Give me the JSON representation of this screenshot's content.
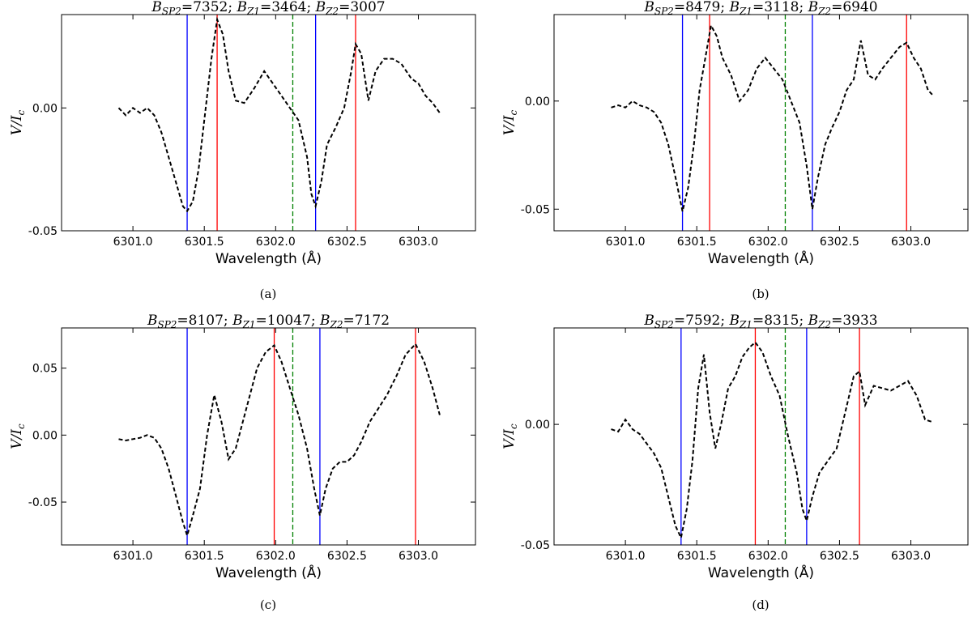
{
  "chart_data": [
    {
      "type": "line",
      "caption": "(a)",
      "title": {
        "parts": [
          [
            "B",
            "SP2",
            "=7352; "
          ],
          [
            "B",
            "Z1",
            "=3464; "
          ],
          [
            "B",
            "Z2",
            "=3007"
          ]
        ]
      },
      "xlabel": "Wavelength (Å)",
      "ylabel": {
        "main": "V/I",
        "sub": "c"
      },
      "xlim": [
        6300.5,
        6303.4
      ],
      "ylim": [
        -0.05,
        0.038
      ],
      "xticks": [
        6301.0,
        6301.5,
        6302.0,
        6302.5,
        6303.0
      ],
      "xtick_labels": [
        "6301.0",
        "6301.5",
        "6302.0",
        "6302.5",
        "6303.0"
      ],
      "yticks": [
        -0.05,
        0.0
      ],
      "ytick_labels": [
        "-0.05",
        "0.00"
      ],
      "vlines": [
        {
          "x": 6301.38,
          "color": "#0000ff",
          "style": "solid"
        },
        {
          "x": 6301.59,
          "color": "#ff0000",
          "style": "solid"
        },
        {
          "x": 6302.12,
          "color": "#008000",
          "style": "dashed"
        },
        {
          "x": 6302.28,
          "color": "#0000ff",
          "style": "solid"
        },
        {
          "x": 6302.56,
          "color": "#ff0000",
          "style": "solid"
        }
      ],
      "series": [
        {
          "style": "dashed",
          "color": "#000000",
          "x": [
            6300.9,
            6300.95,
            6301.0,
            6301.05,
            6301.1,
            6301.15,
            6301.2,
            6301.25,
            6301.3,
            6301.35,
            6301.38,
            6301.42,
            6301.46,
            6301.5,
            6301.55,
            6301.59,
            6301.63,
            6301.67,
            6301.72,
            6301.78,
            6301.85,
            6301.92,
            6301.98,
            6302.04,
            6302.1,
            6302.16,
            6302.22,
            6302.25,
            6302.28,
            6302.32,
            6302.36,
            6302.42,
            6302.48,
            6302.53,
            6302.56,
            6302.6,
            6302.65,
            6302.7,
            6302.76,
            6302.82,
            6302.88,
            6302.95,
            6303.0,
            6303.05,
            6303.1,
            6303.15
          ],
          "y": [
            0.0,
            -0.003,
            0.0,
            -0.002,
            0.0,
            -0.003,
            -0.01,
            -0.02,
            -0.03,
            -0.04,
            -0.042,
            -0.038,
            -0.025,
            -0.005,
            0.02,
            0.036,
            0.03,
            0.015,
            0.003,
            0.002,
            0.008,
            0.015,
            0.01,
            0.005,
            0.0,
            -0.005,
            -0.02,
            -0.035,
            -0.04,
            -0.03,
            -0.015,
            -0.008,
            0.0,
            0.015,
            0.026,
            0.022,
            0.003,
            0.015,
            0.02,
            0.02,
            0.018,
            0.012,
            0.01,
            0.005,
            0.002,
            -0.002
          ]
        }
      ]
    },
    {
      "type": "line",
      "caption": "(b)",
      "title": {
        "parts": [
          [
            "B",
            "SP2",
            "=8479; "
          ],
          [
            "B",
            "Z1",
            "=3118; "
          ],
          [
            "B",
            "Z2",
            "=6940"
          ]
        ]
      },
      "xlabel": "Wavelength (Å)",
      "ylabel": {
        "main": "V/I",
        "sub": "c"
      },
      "xlim": [
        6300.5,
        6303.4
      ],
      "ylim": [
        -0.06,
        0.04
      ],
      "xticks": [
        6301.0,
        6301.5,
        6302.0,
        6302.5,
        6303.0
      ],
      "xtick_labels": [
        "6301.0",
        "6301.5",
        "6302.0",
        "6302.5",
        "6303.0"
      ],
      "yticks": [
        -0.05,
        0.0
      ],
      "ytick_labels": [
        "-0.05",
        "0.00"
      ],
      "vlines": [
        {
          "x": 6301.4,
          "color": "#0000ff",
          "style": "solid"
        },
        {
          "x": 6301.59,
          "color": "#ff0000",
          "style": "solid"
        },
        {
          "x": 6302.12,
          "color": "#008000",
          "style": "dashed"
        },
        {
          "x": 6302.31,
          "color": "#0000ff",
          "style": "solid"
        },
        {
          "x": 6302.97,
          "color": "#ff0000",
          "style": "solid"
        }
      ],
      "series": [
        {
          "style": "dashed",
          "color": "#000000",
          "x": [
            6300.9,
            6300.95,
            6301.0,
            6301.05,
            6301.1,
            6301.15,
            6301.2,
            6301.25,
            6301.3,
            6301.35,
            6301.4,
            6301.44,
            6301.48,
            6301.52,
            6301.56,
            6301.6,
            6301.64,
            6301.68,
            6301.74,
            6301.8,
            6301.86,
            6301.92,
            6301.98,
            6302.04,
            6302.1,
            6302.16,
            6302.22,
            6302.27,
            6302.31,
            6302.35,
            6302.4,
            6302.45,
            6302.5,
            6302.55,
            6302.6,
            6302.65,
            6302.7,
            6302.75,
            6302.8,
            6302.86,
            6302.92,
            6302.97,
            6303.02,
            6303.07,
            6303.12,
            6303.15
          ],
          "y": [
            -0.003,
            -0.002,
            -0.003,
            0.0,
            -0.002,
            -0.003,
            -0.005,
            -0.01,
            -0.02,
            -0.035,
            -0.051,
            -0.04,
            -0.02,
            0.005,
            0.02,
            0.035,
            0.03,
            0.02,
            0.012,
            0.0,
            0.005,
            0.015,
            0.02,
            0.015,
            0.01,
            0.0,
            -0.01,
            -0.03,
            -0.05,
            -0.035,
            -0.02,
            -0.012,
            -0.005,
            0.005,
            0.01,
            0.028,
            0.012,
            0.01,
            0.015,
            0.02,
            0.025,
            0.027,
            0.02,
            0.015,
            0.005,
            0.003
          ]
        }
      ]
    },
    {
      "type": "line",
      "caption": "(c)",
      "title": {
        "parts": [
          [
            "B",
            "SP2",
            "=8107; "
          ],
          [
            "B",
            "Z1",
            "=10047; "
          ],
          [
            "B",
            "Z2",
            "=7172"
          ]
        ]
      },
      "xlabel": "Wavelength (Å)",
      "ylabel": {
        "main": "V/I",
        "sub": "c"
      },
      "xlim": [
        6300.5,
        6303.4
      ],
      "ylim": [
        -0.082,
        0.08
      ],
      "xticks": [
        6301.0,
        6301.5,
        6302.0,
        6302.5,
        6303.0
      ],
      "xtick_labels": [
        "6301.0",
        "6301.5",
        "6302.0",
        "6302.5",
        "6303.0"
      ],
      "yticks": [
        -0.05,
        0.0,
        0.05
      ],
      "ytick_labels": [
        "-0.05",
        "0.00",
        "0.05"
      ],
      "vlines": [
        {
          "x": 6301.38,
          "color": "#0000ff",
          "style": "solid"
        },
        {
          "x": 6301.99,
          "color": "#ff0000",
          "style": "solid"
        },
        {
          "x": 6302.12,
          "color": "#008000",
          "style": "dashed"
        },
        {
          "x": 6302.31,
          "color": "#0000ff",
          "style": "solid"
        },
        {
          "x": 6302.98,
          "color": "#ff0000",
          "style": "solid"
        }
      ],
      "series": [
        {
          "style": "dashed",
          "color": "#000000",
          "x": [
            6300.9,
            6300.95,
            6301.0,
            6301.05,
            6301.1,
            6301.15,
            6301.2,
            6301.25,
            6301.3,
            6301.35,
            6301.38,
            6301.42,
            6301.47,
            6301.52,
            6301.57,
            6301.62,
            6301.67,
            6301.72,
            6301.77,
            6301.82,
            6301.87,
            6301.93,
            6301.99,
            6302.04,
            6302.1,
            6302.16,
            6302.22,
            6302.27,
            6302.31,
            6302.35,
            6302.4,
            6302.45,
            6302.5,
            6302.55,
            6302.6,
            6302.66,
            6302.72,
            6302.78,
            6302.85,
            6302.91,
            6302.98,
            6303.04,
            6303.1,
            6303.15
          ],
          "y": [
            -0.003,
            -0.004,
            -0.003,
            -0.002,
            0.0,
            -0.002,
            -0.01,
            -0.025,
            -0.045,
            -0.065,
            -0.075,
            -0.06,
            -0.04,
            0.0,
            0.03,
            0.01,
            -0.018,
            -0.01,
            0.01,
            0.03,
            0.05,
            0.062,
            0.067,
            0.055,
            0.035,
            0.015,
            -0.01,
            -0.04,
            -0.06,
            -0.04,
            -0.025,
            -0.02,
            -0.02,
            -0.015,
            -0.005,
            0.01,
            0.02,
            0.03,
            0.045,
            0.06,
            0.068,
            0.055,
            0.035,
            0.015
          ]
        }
      ]
    },
    {
      "type": "line",
      "caption": "(d)",
      "title": {
        "parts": [
          [
            "B",
            "SP2",
            "=7592; "
          ],
          [
            "B",
            "Z1",
            "=8315; "
          ],
          [
            "B",
            "Z2",
            "=3933"
          ]
        ]
      },
      "xlabel": "Wavelength (Å)",
      "ylabel": {
        "main": "V/I",
        "sub": "c"
      },
      "xlim": [
        6300.5,
        6303.4
      ],
      "ylim": [
        -0.05,
        0.04
      ],
      "xticks": [
        6301.0,
        6301.5,
        6302.0,
        6302.5,
        6303.0
      ],
      "xtick_labels": [
        "6301.0",
        "6301.5",
        "6302.0",
        "6302.5",
        "6303.0"
      ],
      "yticks": [
        -0.05,
        0.0
      ],
      "ytick_labels": [
        "-0.05",
        "0.00"
      ],
      "vlines": [
        {
          "x": 6301.39,
          "color": "#0000ff",
          "style": "solid"
        },
        {
          "x": 6301.91,
          "color": "#ff0000",
          "style": "solid"
        },
        {
          "x": 6302.12,
          "color": "#008000",
          "style": "dashed"
        },
        {
          "x": 6302.27,
          "color": "#0000ff",
          "style": "solid"
        },
        {
          "x": 6302.64,
          "color": "#ff0000",
          "style": "solid"
        }
      ],
      "series": [
        {
          "style": "dashed",
          "color": "#000000",
          "x": [
            6300.9,
            6300.95,
            6301.0,
            6301.05,
            6301.1,
            6301.15,
            6301.2,
            6301.25,
            6301.3,
            6301.35,
            6301.39,
            6301.43,
            6301.47,
            6301.51,
            6301.55,
            6301.59,
            6301.63,
            6301.67,
            6301.72,
            6301.77,
            6301.82,
            6301.87,
            6301.91,
            6301.96,
            6302.02,
            6302.08,
            6302.14,
            6302.2,
            6302.24,
            6302.27,
            6302.31,
            6302.36,
            6302.42,
            6302.48,
            6302.54,
            6302.6,
            6302.64,
            6302.68,
            6302.74,
            6302.8,
            6302.86,
            6302.92,
            6302.98,
            6303.04,
            6303.1,
            6303.15
          ],
          "y": [
            -0.002,
            -0.003,
            0.002,
            -0.002,
            -0.004,
            -0.008,
            -0.012,
            -0.018,
            -0.03,
            -0.042,
            -0.047,
            -0.035,
            -0.015,
            0.015,
            0.029,
            0.005,
            -0.01,
            0.0,
            0.015,
            0.02,
            0.028,
            0.032,
            0.034,
            0.03,
            0.02,
            0.012,
            -0.005,
            -0.02,
            -0.035,
            -0.04,
            -0.03,
            -0.02,
            -0.015,
            -0.01,
            0.005,
            0.02,
            0.022,
            0.008,
            0.016,
            0.015,
            0.014,
            0.016,
            0.018,
            0.012,
            0.002,
            0.001
          ]
        }
      ]
    }
  ]
}
